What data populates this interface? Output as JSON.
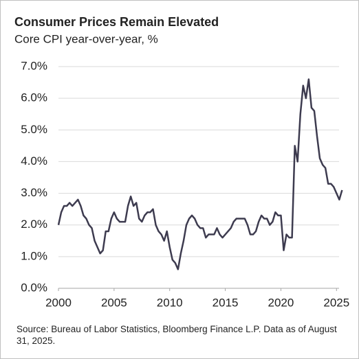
{
  "chart_data": {
    "type": "line",
    "title": "Consumer Prices Remain Elevated",
    "subtitle": "Core CPI year-over-year, %",
    "source": "Source: Bureau of Labor Statistics, Bloomberg Finance L.P. Data as of August 31, 2025.",
    "color": "#3d3b4f",
    "grid": true,
    "xlim": [
      2000,
      2025.6
    ],
    "xticks": [
      2000,
      2005,
      2010,
      2015,
      2020,
      2025
    ],
    "ylim": [
      0,
      7
    ],
    "yticks": [
      {
        "value": 0,
        "label": "0.0%"
      },
      {
        "value": 1,
        "label": "1.0%"
      },
      {
        "value": 2,
        "label": "2.0%"
      },
      {
        "value": 3,
        "label": "3.0%"
      },
      {
        "value": 4,
        "label": "4.0%"
      },
      {
        "value": 5,
        "label": "5.0%"
      },
      {
        "value": 6,
        "label": "6.0%"
      },
      {
        "value": 7,
        "label": "7.0%"
      }
    ],
    "x": [
      2000,
      2000.25,
      2000.5,
      2000.75,
      2001,
      2001.25,
      2001.5,
      2001.75,
      2002,
      2002.25,
      2002.5,
      2002.75,
      2003,
      2003.25,
      2003.5,
      2003.75,
      2004,
      2004.25,
      2004.5,
      2004.75,
      2005,
      2005.25,
      2005.5,
      2005.75,
      2006,
      2006.25,
      2006.5,
      2006.75,
      2007,
      2007.25,
      2007.5,
      2007.75,
      2008,
      2008.25,
      2008.5,
      2008.75,
      2009,
      2009.25,
      2009.5,
      2009.75,
      2010,
      2010.25,
      2010.5,
      2010.75,
      2011,
      2011.25,
      2011.5,
      2011.75,
      2012,
      2012.25,
      2012.5,
      2012.75,
      2013,
      2013.25,
      2013.5,
      2013.75,
      2014,
      2014.25,
      2014.5,
      2014.75,
      2015,
      2015.25,
      2015.5,
      2015.75,
      2016,
      2016.25,
      2016.5,
      2016.75,
      2017,
      2017.25,
      2017.5,
      2017.75,
      2018,
      2018.25,
      2018.5,
      2018.75,
      2019,
      2019.25,
      2019.5,
      2019.75,
      2020,
      2020.25,
      2020.5,
      2020.75,
      2021,
      2021.25,
      2021.5,
      2021.75,
      2022,
      2022.25,
      2022.5,
      2022.75,
      2023,
      2023.25,
      2023.5,
      2023.75,
      2024,
      2024.25,
      2024.5,
      2024.75,
      2025.25,
      2025.5
    ],
    "values": [
      2.0,
      2.4,
      2.6,
      2.6,
      2.7,
      2.6,
      2.7,
      2.8,
      2.6,
      2.3,
      2.2,
      2.0,
      1.9,
      1.5,
      1.3,
      1.1,
      1.2,
      1.8,
      1.8,
      2.2,
      2.4,
      2.2,
      2.1,
      2.1,
      2.1,
      2.6,
      2.9,
      2.6,
      2.7,
      2.2,
      2.1,
      2.3,
      2.4,
      2.4,
      2.5,
      2.0,
      1.8,
      1.7,
      1.5,
      1.8,
      1.3,
      0.9,
      0.8,
      0.6,
      1.1,
      1.5,
      2.0,
      2.2,
      2.3,
      2.2,
      2.0,
      1.9,
      1.9,
      1.6,
      1.7,
      1.7,
      1.7,
      1.9,
      1.7,
      1.6,
      1.7,
      1.8,
      1.9,
      2.1,
      2.2,
      2.2,
      2.2,
      2.2,
      2.0,
      1.7,
      1.7,
      1.8,
      2.1,
      2.3,
      2.2,
      2.2,
      2.0,
      2.1,
      2.4,
      2.3,
      2.3,
      1.2,
      1.7,
      1.6,
      1.6,
      4.5,
      4.0,
      5.5,
      6.4,
      6.0,
      6.6,
      5.7,
      5.6,
      4.8,
      4.1,
      3.9,
      3.8,
      3.3,
      3.3,
      3.2,
      2.8,
      3.1
    ]
  }
}
